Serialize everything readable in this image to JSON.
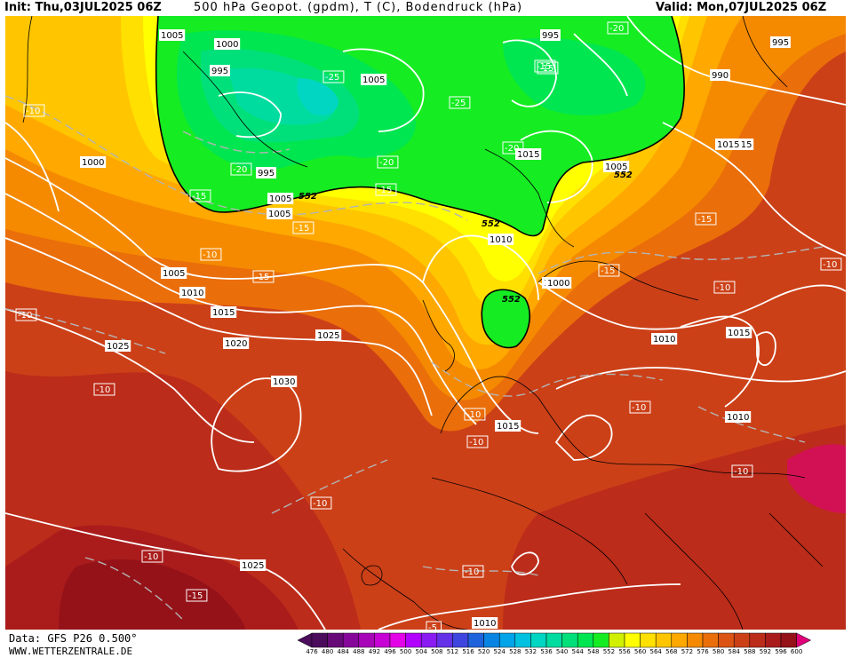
{
  "header": {
    "init": "Init: Thu,03JUL2025 06Z",
    "title": "500 hPa Geopot. (gpdm), T (C), Bodendruck (hPa)",
    "valid": "Valid: Mon,07JUL2025 06Z"
  },
  "footer": {
    "data_source": "Data: GFS P26 0.500°",
    "website": "WWW.WETTERZENTRALE.DE"
  },
  "colorbar": {
    "ticks": [
      "476",
      "480",
      "484",
      "488",
      "492",
      "496",
      "500",
      "504",
      "508",
      "512",
      "516",
      "520",
      "524",
      "528",
      "532",
      "536",
      "540",
      "544",
      "548",
      "552",
      "556",
      "560",
      "564",
      "568",
      "572",
      "576",
      "580",
      "584",
      "588",
      "592",
      "596",
      "600"
    ],
    "colors": [
      "#4b0c5c",
      "#670a78",
      "#86089a",
      "#a805b8",
      "#c603d4",
      "#e402e6",
      "#b200ff",
      "#8a1cf2",
      "#6430e8",
      "#3f46e0",
      "#1e62dc",
      "#0a84e2",
      "#00a4e8",
      "#00c2e0",
      "#00d6c2",
      "#00dca0",
      "#00e07a",
      "#00e650",
      "#16ec22",
      "#d0f000",
      "#ffff00",
      "#ffe000",
      "#ffc600",
      "#ffa800",
      "#f58a00",
      "#ea6e0a",
      "#dc5414",
      "#cc4018",
      "#bc2c1a",
      "#aa1c1c",
      "#951218",
      "#e0007a"
    ]
  },
  "map_labels": {
    "pressure": [
      "1005",
      "1000",
      "995",
      "1005",
      "995",
      "995",
      "1005",
      "1010",
      "1015",
      "990",
      "995",
      "1000",
      "1010",
      "1015",
      "1005",
      "1005",
      "1010",
      "1015",
      "1020",
      "1025",
      "1025",
      "1030",
      "1015",
      "1000",
      "1015",
      "1010",
      "1015",
      "1010",
      "1025",
      "1010",
      "1005",
      "1015"
    ],
    "temperature": [
      "-20",
      "-15",
      "-10",
      "-25",
      "-25",
      "-20",
      "-20",
      "-15",
      "-15",
      "-15",
      "-10",
      "-15",
      "-15",
      "-15",
      "-10",
      "-10",
      "-10",
      "-10",
      "-10",
      "-10",
      "-15",
      "-10",
      "-10",
      "-5",
      "-10",
      "-10",
      "-10",
      "-10",
      "-15",
      "-20"
    ],
    "geopotential": [
      "552",
      "552",
      "552",
      "552"
    ]
  }
}
